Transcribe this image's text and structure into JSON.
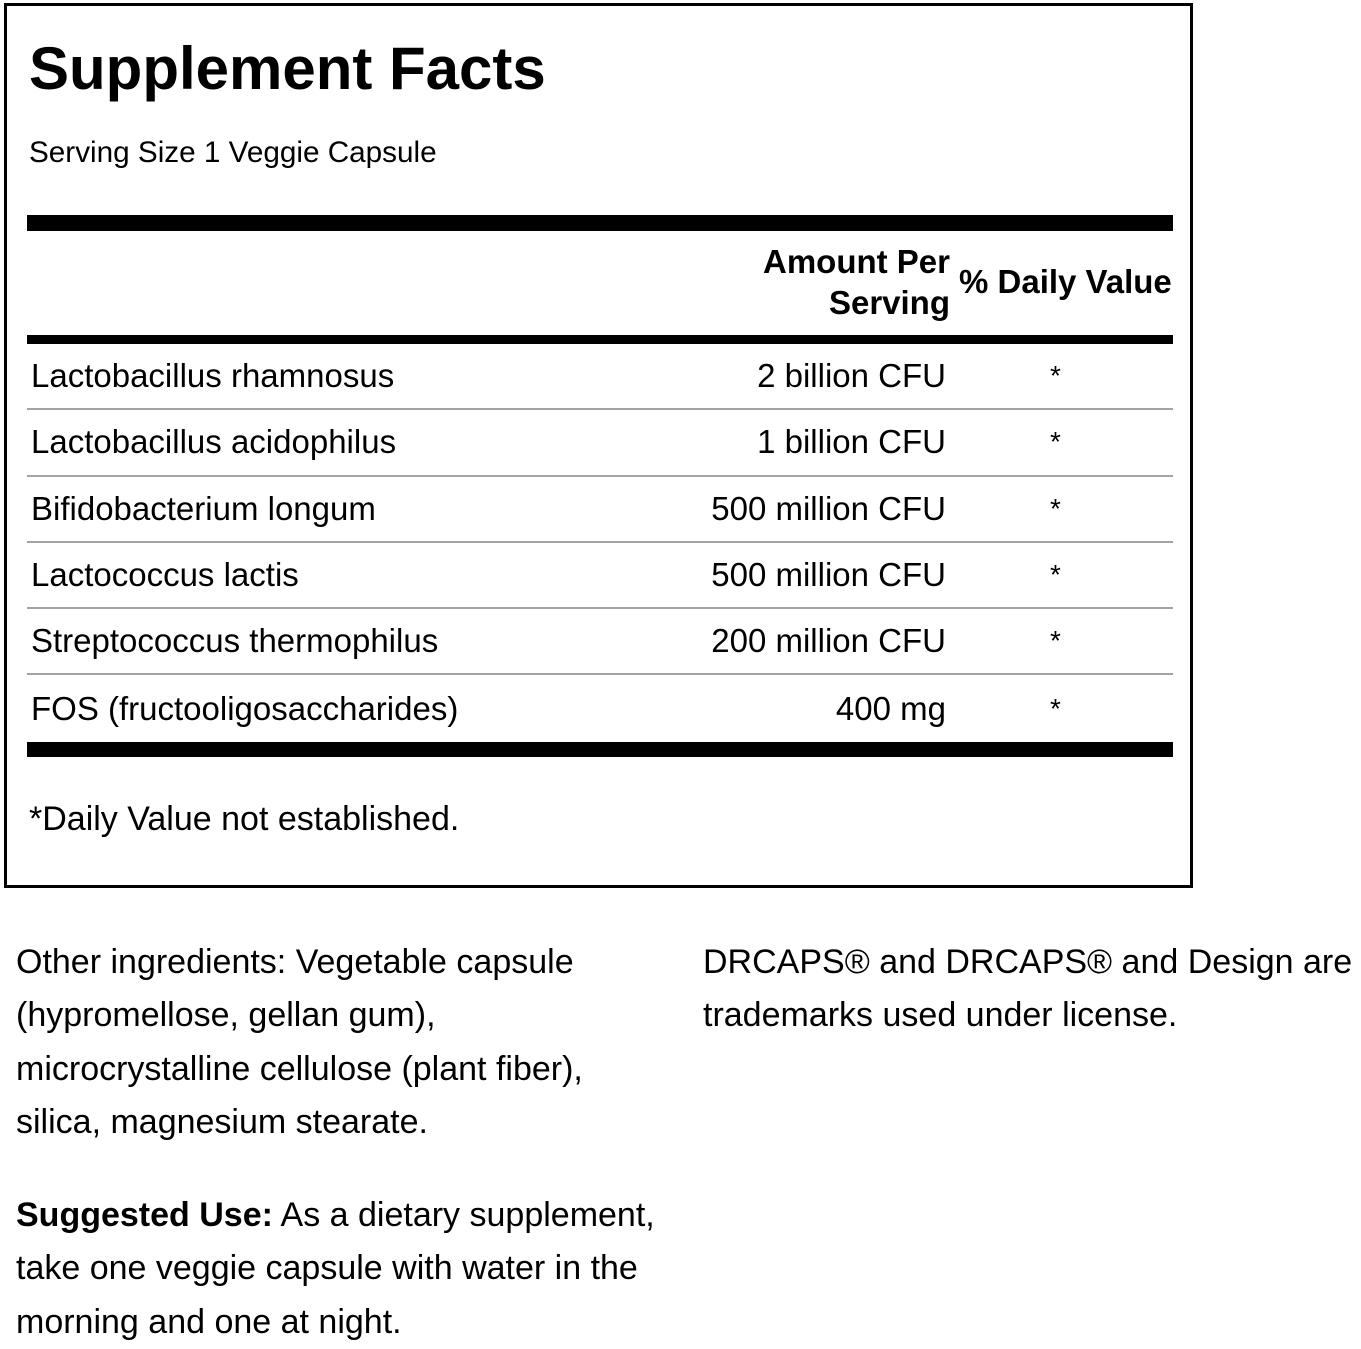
{
  "panel": {
    "title": "Supplement Facts",
    "serving_size": "Serving Size 1 Veggie Capsule",
    "amount_header_line1": "Amount Per",
    "amount_header_line2": "Serving",
    "col_dv_header": "% Daily Value",
    "rows": [
      {
        "name": "Lactobacillus rhamnosus",
        "amount": "2 billion CFU",
        "dv": "*"
      },
      {
        "name": "Lactobacillus acidophilus",
        "amount": "1 billion CFU",
        "dv": "*"
      },
      {
        "name": "Bifidobacterium longum",
        "amount": "500 million CFU",
        "dv": "*"
      },
      {
        "name": "Lactococcus lactis",
        "amount": "500 million CFU",
        "dv": "*"
      },
      {
        "name": "Streptococcus thermophilus",
        "amount": "200 million CFU",
        "dv": "*"
      },
      {
        "name": "FOS (fructooligosaccharides)",
        "amount": "400 mg",
        "dv": "*"
      }
    ],
    "footnote": "*Daily Value not established."
  },
  "other_ingredients": {
    "lines": [
      "Other ingredients: Vegetable capsule",
      "(hypromellose, gellan gum),",
      "microcrystalline cellulose (plant fiber),",
      "silica, magnesium stearate."
    ]
  },
  "trademark_note": {
    "lines": [
      "DRCAPS® and DRCAPS® and Design are",
      "trademarks used under license."
    ]
  },
  "suggested_use": {
    "label": "Suggested Use:",
    "rest": " As a dietary supplement,",
    "lines": [
      "take one veggie capsule with water in the",
      "morning and one at night."
    ]
  },
  "colors": {
    "text": "#000000",
    "divider": "#000000",
    "row_separator": "#a3a3a3"
  }
}
